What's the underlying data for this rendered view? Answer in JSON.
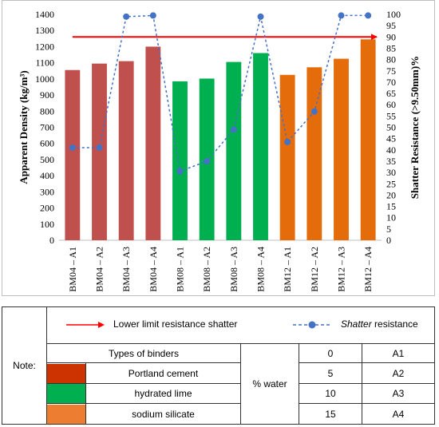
{
  "chart_data": {
    "type": "bar+line",
    "categories": [
      "BM04 – A1",
      "BM04 – A2",
      "BM04 – A3",
      "BM04 – A4",
      "BM08 – A1",
      "BM08 – A2",
      "BM08 – A3",
      "BM08 – A4",
      "BM12 – A1",
      "BM12 – A2",
      "BM12 – A3",
      "BM12 – A4"
    ],
    "bar_series": {
      "values": [
        1055,
        1095,
        1110,
        1200,
        985,
        1002,
        1105,
        1160,
        1025,
        1072,
        1125,
        1245
      ],
      "colors": [
        "#c0504d",
        "#c0504d",
        "#c0504d",
        "#c0504d",
        "#00b050",
        "#00b050",
        "#00b050",
        "#00b050",
        "#e46c0a",
        "#e46c0a",
        "#e46c0a",
        "#e46c0a"
      ]
    },
    "line_series": {
      "name": "Shatter resistance",
      "values": [
        41,
        41,
        99,
        99.5,
        30.5,
        35,
        49,
        99,
        43.5,
        57,
        99.5,
        99.5
      ],
      "color": "#4472c4"
    },
    "threshold": {
      "value": 90,
      "color": "#ff0000",
      "label": "Lower limit resistance shatter"
    },
    "ylabel_left": "Apparent Density (kg/m³)",
    "ylabel_right": "Shatter Resistance (>9.50mm)%",
    "ylim_left": [
      0,
      1400
    ],
    "yticks_left": [
      "0",
      "100",
      "200",
      "300",
      "400",
      "500",
      "600",
      "700",
      "800",
      "900",
      "1000",
      "1100",
      "1200",
      "1300",
      "1400"
    ],
    "ylim_right": [
      0,
      100
    ],
    "yticks_right": [
      "0",
      "5",
      "10",
      "15",
      "20",
      "25",
      "30",
      "35",
      "40",
      "45",
      "50",
      "55",
      "60",
      "65",
      "70",
      "75",
      "80",
      "85",
      "90",
      "95",
      "100"
    ],
    "grid": false
  },
  "legend": {
    "note_label": "Note:",
    "threshold_label": "Lower limit resistance shatter",
    "shatter_label_italic": "Shatter",
    "shatter_label_rest": " resistance",
    "types_header": "Types of binders",
    "binders": [
      {
        "name": "Portland cement",
        "color": "#cc3300"
      },
      {
        "name": "hydrated lime",
        "color": "#00b050"
      },
      {
        "name": "sodium silicate",
        "color": "#ed7d31"
      }
    ],
    "water_label": "% water",
    "water_rows": [
      {
        "pct": "0",
        "code": "A1"
      },
      {
        "pct": "5",
        "code": "A2"
      },
      {
        "pct": "10",
        "code": "A3"
      },
      {
        "pct": "15",
        "code": "A4"
      }
    ]
  }
}
